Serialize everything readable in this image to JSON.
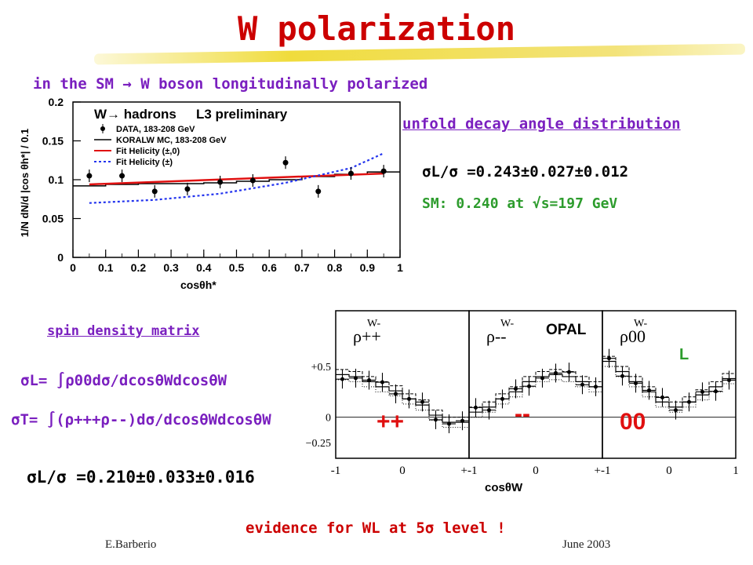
{
  "title": "W polarization",
  "intro": "in the SM → W boson longitudinally polarized",
  "top_plot": {
    "legend_title": "W→ hadrons",
    "legend_tag": "L3 preliminary",
    "legend_items": [
      "DATA, 183-208 GeV",
      "KORALW MC, 183-208 GeV",
      "Fit Helicity (±,0)",
      "Fit Helicity (±)"
    ],
    "ylabel": "1/N dN/d |cos θh*| / 0.1",
    "xlabel": "cosθh*",
    "yticks": [
      "0",
      "0.05",
      "0.1",
      "0.15",
      "0.2"
    ],
    "xticks": [
      "0",
      "0.1",
      "0.2",
      "0.3",
      "0.4",
      "0.5",
      "0.6",
      "0.7",
      "0.8",
      "0.9",
      "1"
    ]
  },
  "unfold_label": "unfold decay angle distribution",
  "sigma_l_top": "σL/σ =0.243±0.027±0.012",
  "sm_text": "SM: 0.240 at √s=197 GeV",
  "spin_label": "spin density matrix",
  "formula_l": "σL= ∫ρ00dσ/dcosθWdcosθW",
  "formula_t": "σT= ∫(ρ+++ρ--)dσ/dcosθWdcosθW",
  "sigma_l_bottom": "σL/σ =0.210±0.033±0.016",
  "bottom_plot": {
    "opal": "OPAL",
    "l_tag": "L",
    "panels": [
      {
        "label": "++",
        "rho": "ρ++",
        "w": "W-"
      },
      {
        "label": "--",
        "rho": "ρ--",
        "w": "W-"
      },
      {
        "label": "00",
        "rho": "ρ00",
        "w": "W-"
      }
    ],
    "yticks": [
      "+0.5",
      "0",
      "−0.25"
    ],
    "xticks": [
      "-1",
      "0",
      "+-1",
      "0",
      "+-1",
      "0",
      "1"
    ],
    "xlabel": "cosθW"
  },
  "evidence": "evidence for WL at 5σ level !",
  "footer_left": "E.Barberio",
  "footer_right": "June 2003",
  "chart_data": {
    "type": "scatter",
    "title": "",
    "xlabel": "cosθh*",
    "ylabel": "1/N dN/d |cos θh*| / 0.1",
    "xlim": [
      0,
      1
    ],
    "ylim": [
      0,
      0.2
    ],
    "series": [
      {
        "name": "DATA, 183-208 GeV",
        "x": [
          0.05,
          0.15,
          0.25,
          0.35,
          0.45,
          0.55,
          0.65,
          0.75,
          0.85,
          0.95
        ],
        "values": [
          0.105,
          0.105,
          0.085,
          0.088,
          0.097,
          0.099,
          0.122,
          0.085,
          0.108,
          0.111
        ]
      },
      {
        "name": "KORALW MC, 183-208 GeV",
        "x": [
          0.0,
          0.1,
          0.2,
          0.3,
          0.4,
          0.5,
          0.6,
          0.7,
          0.8,
          0.9,
          1.0
        ],
        "values": [
          0.092,
          0.094,
          0.095,
          0.095,
          0.096,
          0.098,
          0.1,
          0.104,
          0.107,
          0.11,
          0.11
        ]
      },
      {
        "name": "Fit Helicity (±,0)",
        "x": [
          0.05,
          0.95
        ],
        "values": [
          0.094,
          0.108
        ]
      },
      {
        "name": "Fit Helicity (±)",
        "x": [
          0.05,
          0.25,
          0.45,
          0.65,
          0.85,
          0.95
        ],
        "values": [
          0.07,
          0.074,
          0.082,
          0.096,
          0.115,
          0.134
        ]
      }
    ]
  }
}
